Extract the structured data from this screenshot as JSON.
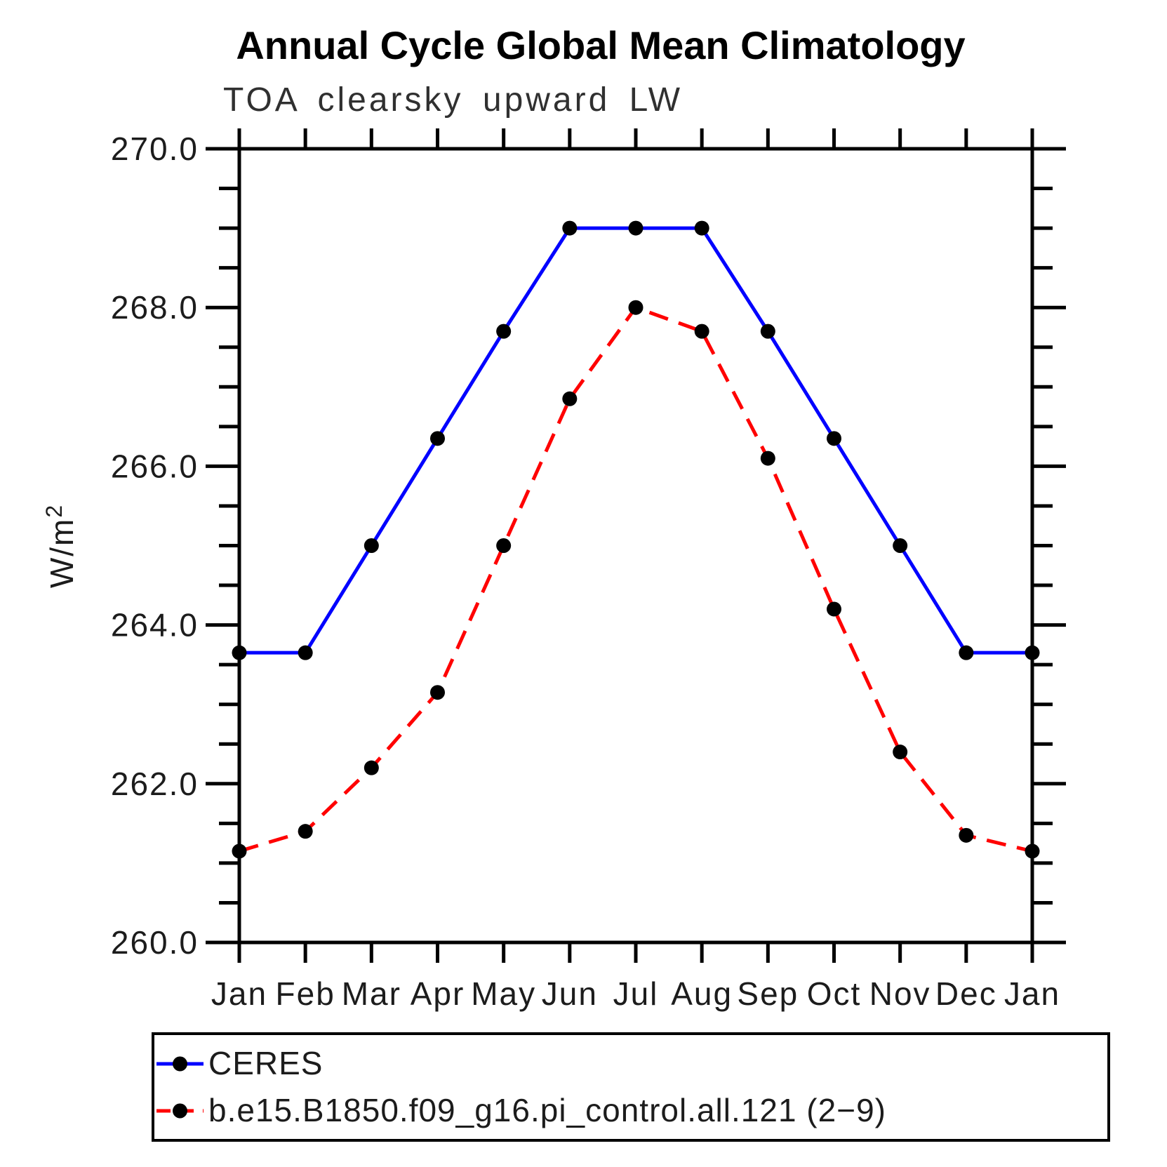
{
  "chart_data": {
    "type": "line",
    "title": "Annual Cycle Global Mean Climatology",
    "subtitle": "TOA clearsky upward LW",
    "ylabel": {
      "base": "W/m",
      "sup": "2"
    },
    "categories": [
      "Jan",
      "Feb",
      "Mar",
      "Apr",
      "May",
      "Jun",
      "Jul",
      "Aug",
      "Sep",
      "Oct",
      "Nov",
      "Dec",
      "Jan"
    ],
    "ylim": [
      260.0,
      270.0
    ],
    "y_major_ticks": [
      260.0,
      262.0,
      264.0,
      266.0,
      268.0,
      270.0
    ],
    "y_minor_step": 0.5,
    "grid": false,
    "legend_position": "bottom",
    "marker": "filled-circle",
    "marker_color": "#000000",
    "series": [
      {
        "name": "CERES",
        "color": "#0000FF",
        "style": "solid",
        "values": [
          263.65,
          263.65,
          265.0,
          266.35,
          267.7,
          269.0,
          269.0,
          269.0,
          267.7,
          266.35,
          265.0,
          263.65,
          263.65
        ]
      },
      {
        "name": "b.e15.B1850.f09_g16.pi_control.all.121 (2−9)",
        "color": "#FF0000",
        "style": "dashed",
        "values": [
          261.15,
          261.4,
          262.2,
          263.15,
          265.0,
          266.85,
          268.0,
          267.7,
          266.1,
          264.2,
          262.4,
          261.35,
          261.15
        ]
      }
    ]
  }
}
